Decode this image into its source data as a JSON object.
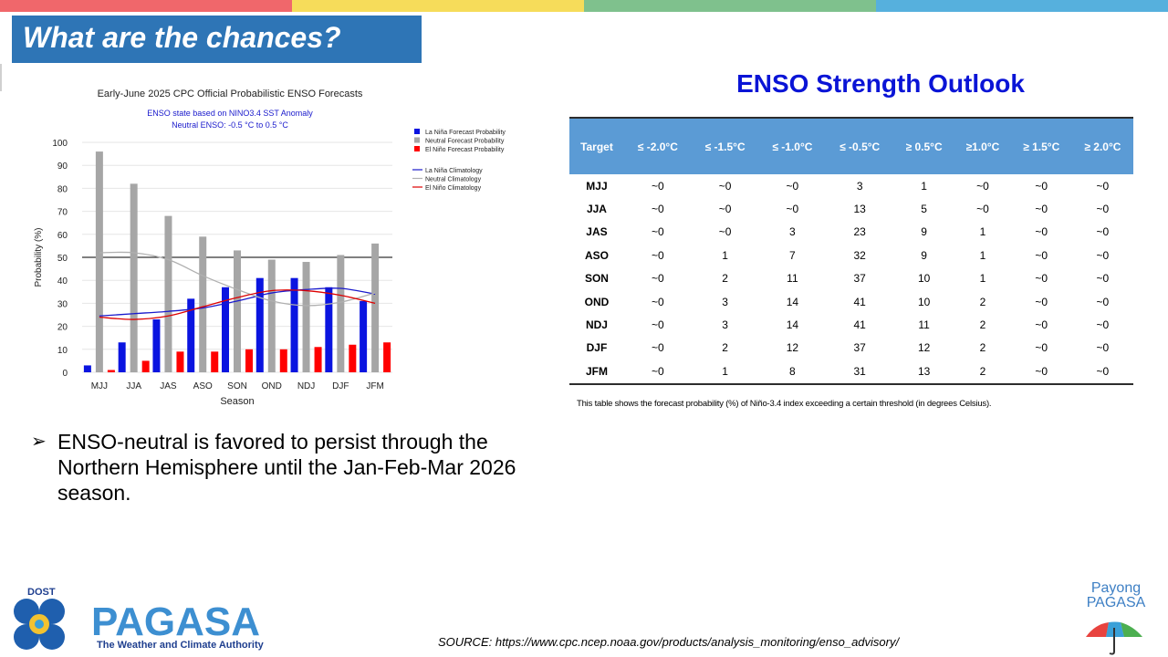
{
  "colors": {
    "stripe": [
      "#f0676b",
      "#f6dc5a",
      "#7fc18d",
      "#56b0dd"
    ],
    "title_bg": "#2e75b6",
    "la_nina": "#0a14e0",
    "neutral": "#a6a6a6",
    "el_nino": "#ff0000",
    "table_header": "#5b9bd5",
    "outlook_title": "#0a14d6"
  },
  "header": {
    "title": "What are the chances?"
  },
  "chart_data": {
    "type": "bar",
    "title": "Early-June 2025 CPC Official Probabilistic ENSO Forecasts",
    "subtitle": [
      "ENSO state based on NINO3.4 SST Anomaly",
      "Neutral ENSO: -0.5 °C to 0.5 °C"
    ],
    "xlabel": "Season",
    "ylabel": "Probability (%)",
    "ylim": [
      0,
      100
    ],
    "yticks": [
      0,
      10,
      20,
      30,
      40,
      50,
      60,
      70,
      80,
      90,
      100
    ],
    "reference_line": 50,
    "grid": true,
    "legend_position": "top-right",
    "categories": [
      "MJJ",
      "JJA",
      "JAS",
      "ASO",
      "SON",
      "OND",
      "NDJ",
      "DJF",
      "JFM"
    ],
    "series": [
      {
        "name": "La Niña Forecast Probability",
        "kind": "bar",
        "color": "#0a14e0",
        "values": [
          3,
          13,
          23,
          32,
          37,
          41,
          41,
          37,
          31
        ]
      },
      {
        "name": "Neutral Forecast Probability",
        "kind": "bar",
        "color": "#a6a6a6",
        "values": [
          96,
          82,
          68,
          59,
          53,
          49,
          48,
          51,
          56
        ]
      },
      {
        "name": "El Niño Forecast Probability",
        "kind": "bar",
        "color": "#ff0000",
        "values": [
          1,
          5,
          9,
          9,
          10,
          10,
          11,
          12,
          13
        ]
      },
      {
        "name": "La Niña Climatology",
        "kind": "line",
        "color": "#1a1acc",
        "values": [
          24.5,
          25.5,
          26.5,
          28,
          31,
          34.5,
          36,
          36.5,
          34
        ]
      },
      {
        "name": "Neutral Climatology",
        "kind": "line",
        "color": "#b0b0b0",
        "values": [
          52,
          52,
          49,
          42,
          36,
          31,
          29,
          30.5,
          34.5
        ]
      },
      {
        "name": "El Niño Climatology",
        "kind": "line",
        "color": "#dd0000",
        "values": [
          24,
          23,
          24.5,
          28.5,
          32.5,
          35.5,
          35.5,
          33.5,
          30
        ]
      }
    ]
  },
  "outlook": {
    "title": "ENSO Strength Outlook",
    "headers": [
      "Target",
      "≤ -2.0°C",
      "≤ -1.5°C",
      "≤ -1.0°C",
      "≤ -0.5°C",
      "≥ 0.5°C",
      "≥1.0°C",
      "≥ 1.5°C",
      "≥ 2.0°C"
    ],
    "rows": [
      [
        "MJJ",
        "~0",
        "~0",
        "~0",
        "3",
        "1",
        "~0",
        "~0",
        "~0"
      ],
      [
        "JJA",
        "~0",
        "~0",
        "~0",
        "13",
        "5",
        "~0",
        "~0",
        "~0"
      ],
      [
        "JAS",
        "~0",
        "~0",
        "3",
        "23",
        "9",
        "1",
        "~0",
        "~0"
      ],
      [
        "ASO",
        "~0",
        "1",
        "7",
        "32",
        "9",
        "1",
        "~0",
        "~0"
      ],
      [
        "SON",
        "~0",
        "2",
        "11",
        "37",
        "10",
        "1",
        "~0",
        "~0"
      ],
      [
        "OND",
        "~0",
        "3",
        "14",
        "41",
        "10",
        "2",
        "~0",
        "~0"
      ],
      [
        "NDJ",
        "~0",
        "3",
        "14",
        "41",
        "11",
        "2",
        "~0",
        "~0"
      ],
      [
        "DJF",
        "~0",
        "2",
        "12",
        "37",
        "12",
        "2",
        "~0",
        "~0"
      ],
      [
        "JFM",
        "~0",
        "1",
        "8",
        "31",
        "13",
        "2",
        "~0",
        "~0"
      ]
    ],
    "note": "This table shows the forecast probability (%) of Niño-3.4 index exceeding a certain threshold (in degrees Celsius)."
  },
  "bullet": {
    "icon": "arrow-bullet-icon",
    "text": "ENSO-neutral is favored to persist through the Northern Hemisphere until the Jan-Feb-Mar 2026 season."
  },
  "footer": {
    "source": "SOURCE: https://www.cpc.ncep.noaa.gov/products/analysis_monitoring/enso_advisory/",
    "logo_dost": "DOST",
    "logo_pagasa": "PAGASA",
    "logo_tagline": "The Weather and Climate Authority",
    "payong_line1": "Payong",
    "payong_line2": "PAGASA"
  }
}
